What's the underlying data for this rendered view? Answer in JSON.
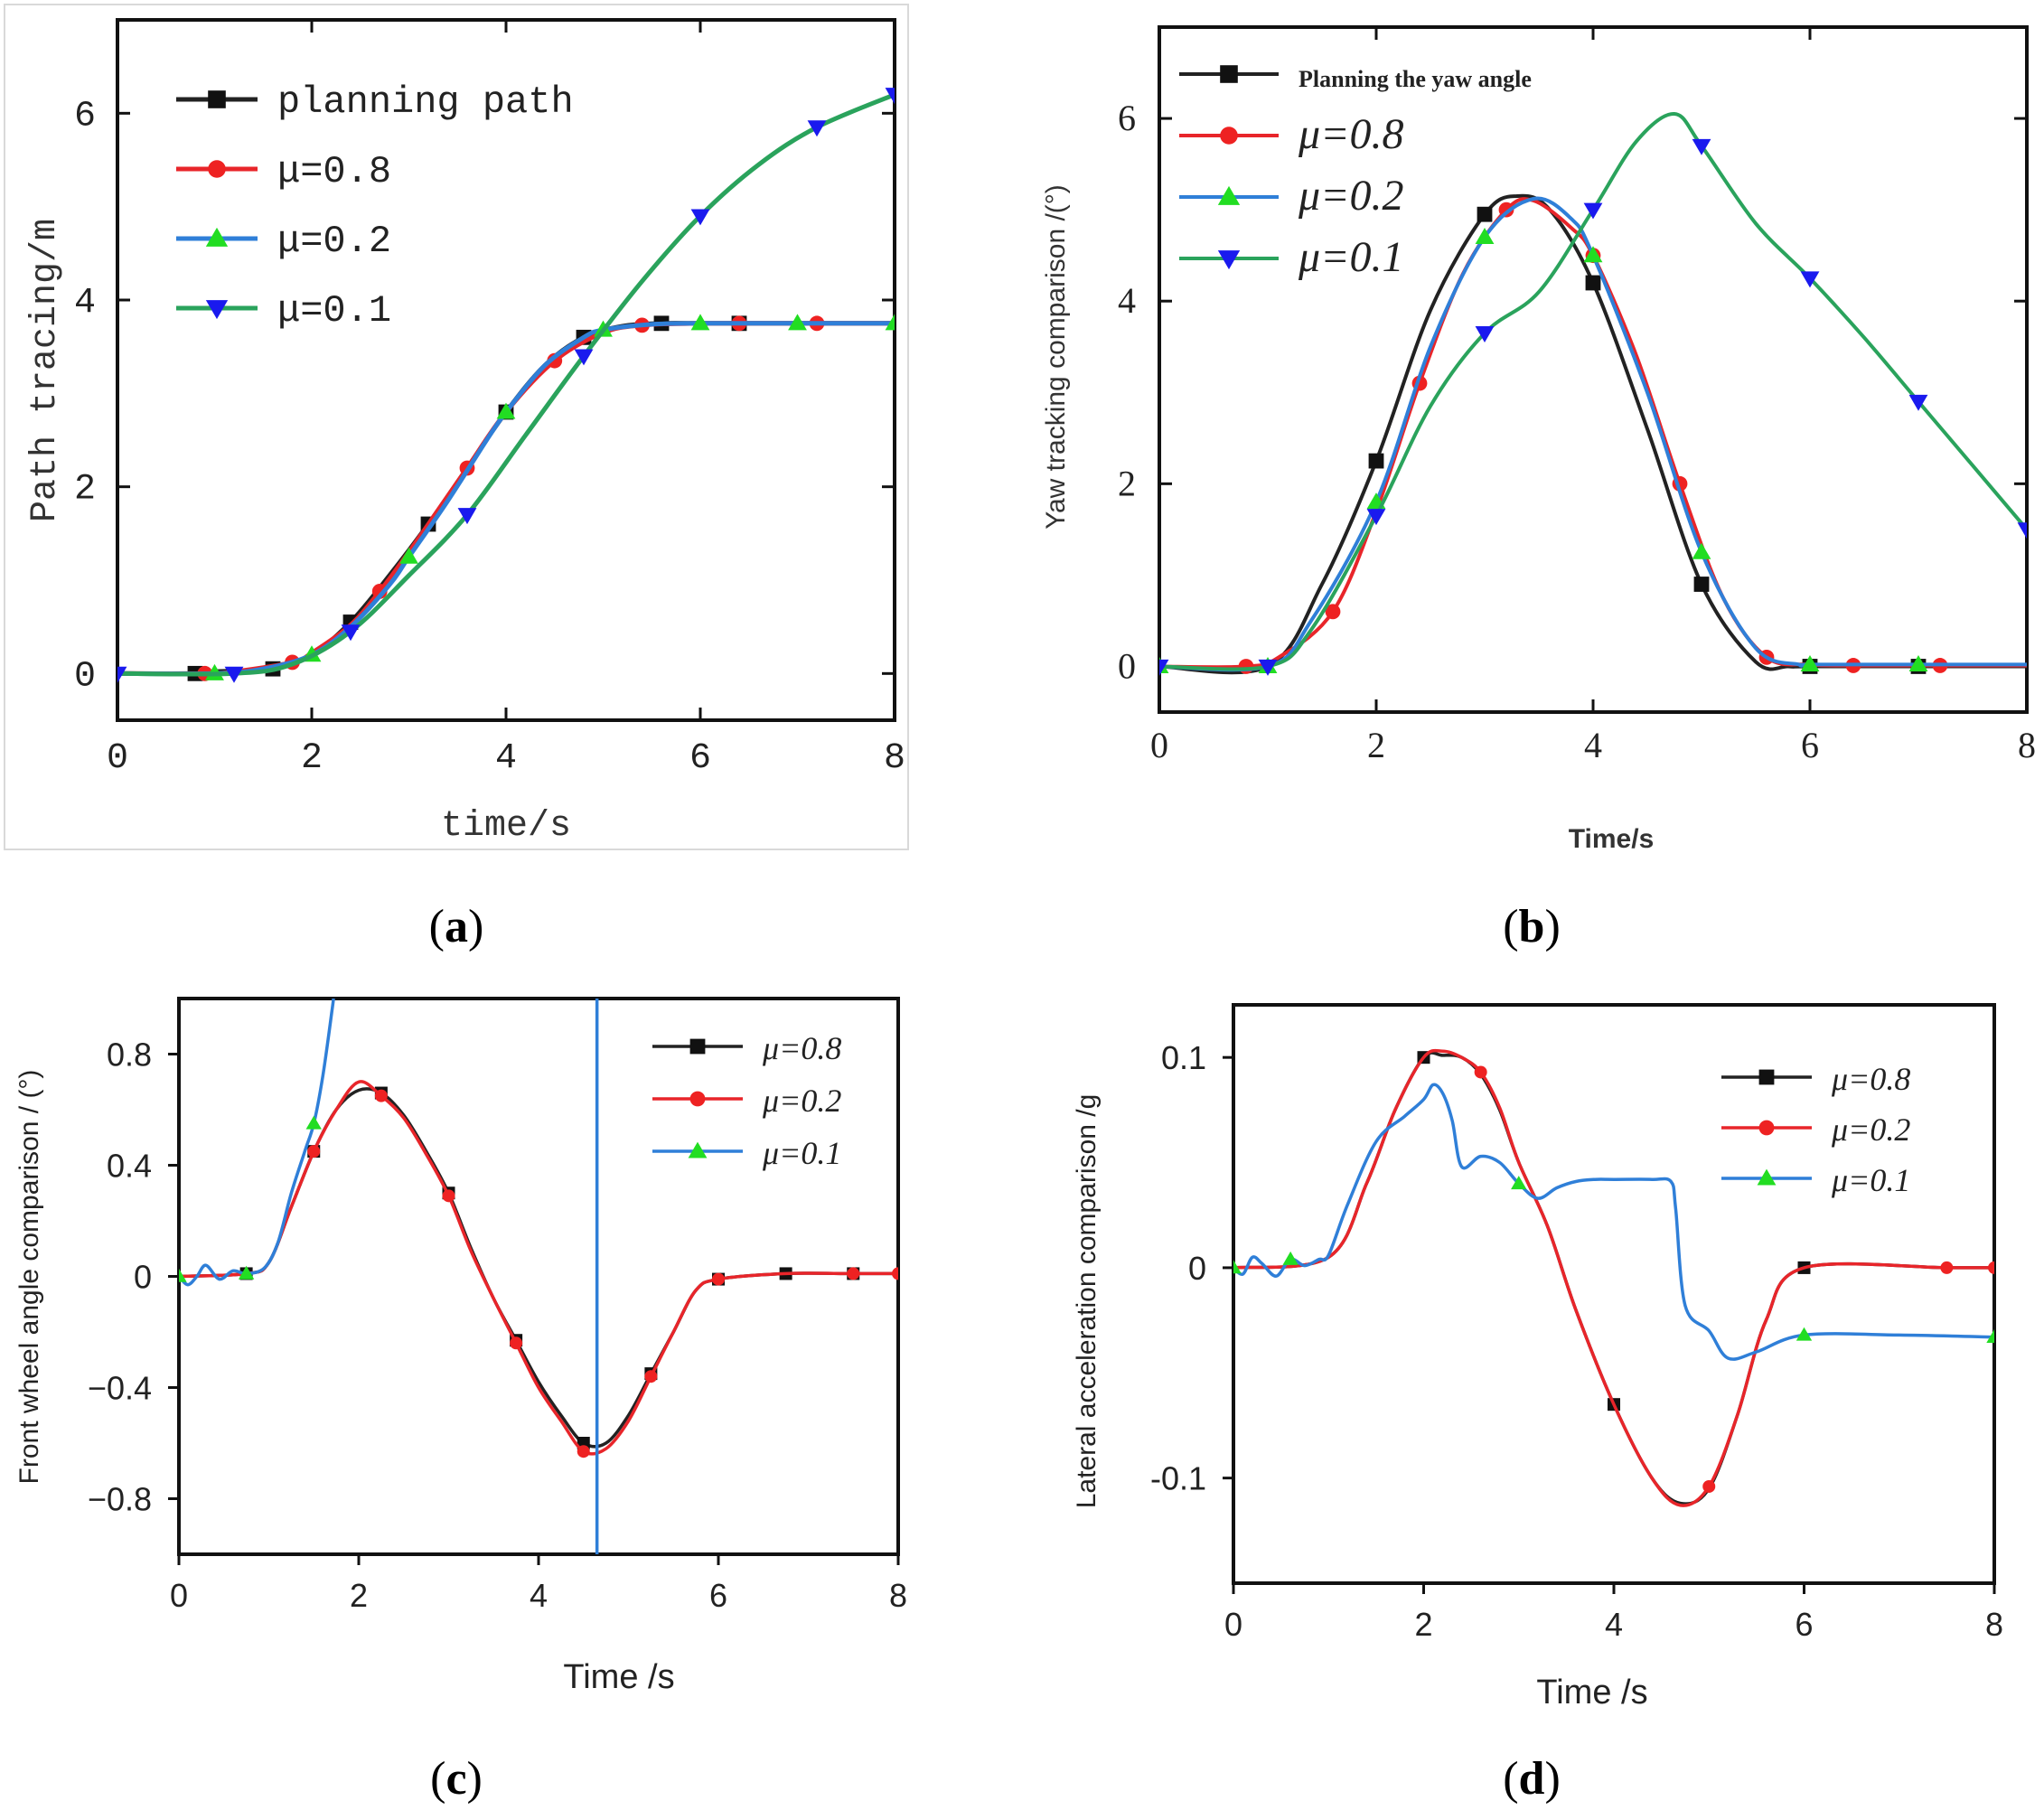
{
  "chart_data": [
    {
      "id": "a",
      "panel_label": "a",
      "type": "line",
      "xlabel": "time/s",
      "ylabel": "Path tracing/m",
      "xlim": [
        0,
        8
      ],
      "ylim": [
        -0.5,
        7
      ],
      "xticks": [
        0,
        2,
        4,
        6,
        8
      ],
      "yticks": [
        0,
        2,
        4,
        6
      ],
      "legend_position": "top-left",
      "series": [
        {
          "name": "planning path",
          "color": "#222222",
          "marker": "square",
          "x": [
            0,
            0.8,
            1.0,
            1.6,
            2.0,
            2.4,
            2.8,
            3.2,
            3.6,
            4.0,
            4.4,
            4.8,
            5.2,
            5.6,
            6.0,
            6.4,
            7.0,
            8.0
          ],
          "y": [
            0,
            0,
            0.02,
            0.05,
            0.2,
            0.55,
            1.05,
            1.6,
            2.2,
            2.8,
            3.3,
            3.6,
            3.72,
            3.75,
            3.75,
            3.75,
            3.75,
            3.75
          ],
          "marker_x": [
            0.8,
            1.6,
            2.4,
            3.2,
            4.0,
            4.8,
            5.6,
            6.4
          ]
        },
        {
          "name": "μ=0.8",
          "color": "#e8252a",
          "marker": "circle",
          "x": [
            0,
            0.9,
            1.2,
            1.8,
            2.0,
            2.4,
            2.7,
            3.0,
            3.3,
            3.6,
            4.0,
            4.5,
            5.0,
            5.4,
            6.0,
            7.2,
            8.0
          ],
          "y": [
            0,
            0,
            0.02,
            0.12,
            0.22,
            0.52,
            0.88,
            1.3,
            1.75,
            2.2,
            2.8,
            3.35,
            3.65,
            3.73,
            3.75,
            3.75,
            3.75
          ],
          "marker_x": [
            0.9,
            1.8,
            2.7,
            3.6,
            4.5,
            5.4,
            6.4,
            7.2
          ]
        },
        {
          "name": "μ=0.2",
          "color": "#2f7fd8",
          "marker": "triangle-up",
          "x": [
            0,
            1.0,
            1.5,
            2.0,
            2.4,
            2.8,
            3.0,
            3.4,
            3.8,
            4.0,
            4.4,
            4.8,
            5.0,
            5.5,
            6.0,
            7.0,
            8.0
          ],
          "y": [
            0,
            0,
            0.05,
            0.2,
            0.5,
            0.95,
            1.25,
            1.85,
            2.5,
            2.8,
            3.3,
            3.6,
            3.68,
            3.74,
            3.75,
            3.75,
            3.75
          ],
          "marker_x": [
            1.0,
            2.0,
            3.0,
            4.0,
            5.0,
            6.0,
            7.0,
            8.0
          ]
        },
        {
          "name": "μ=0.1",
          "color": "#2aa35c",
          "marker": "triangle-down",
          "x": [
            0,
            1.2,
            1.8,
            2.4,
            3.0,
            3.6,
            4.2,
            4.8,
            5.4,
            6.0,
            6.6,
            7.2,
            8.0
          ],
          "y": [
            0,
            0,
            0.1,
            0.45,
            1.05,
            1.7,
            2.55,
            3.4,
            4.2,
            4.9,
            5.45,
            5.85,
            6.2
          ],
          "marker_x": [
            0,
            1.2,
            2.4,
            3.6,
            4.8,
            6.0,
            7.2,
            8.0
          ]
        }
      ]
    },
    {
      "id": "b",
      "panel_label": "b",
      "type": "line",
      "xlabel": "Time/s",
      "ylabel": "Yaw tracking comparison /(°)",
      "xlim": [
        0,
        8
      ],
      "ylim": [
        -0.5,
        7
      ],
      "xticks": [
        0,
        2,
        4,
        6,
        8
      ],
      "yticks": [
        0,
        2,
        4,
        6
      ],
      "legend_position": "top-left",
      "series": [
        {
          "name": "Planning the yaw angle",
          "color": "#222222",
          "marker": "square",
          "x": [
            0,
            1.0,
            1.5,
            2.0,
            2.5,
            3.0,
            3.3,
            3.6,
            4.0,
            4.5,
            5.0,
            5.5,
            5.8,
            6.0,
            7.0,
            8.0
          ],
          "y": [
            0,
            0,
            0.9,
            2.25,
            3.9,
            4.95,
            5.15,
            5.0,
            4.2,
            2.6,
            0.9,
            0.05,
            0,
            0,
            0,
            0
          ],
          "marker_x": [
            2.0,
            3.0,
            4.0,
            5.0,
            6.0,
            7.0
          ]
        },
        {
          "name": "μ=0.8",
          "color": "#e8252a",
          "marker": "circle",
          "x": [
            0,
            0.8,
            1.1,
            1.6,
            2.0,
            2.4,
            2.8,
            3.2,
            3.45,
            3.8,
            4.0,
            4.4,
            4.8,
            5.2,
            5.6,
            6.0,
            6.4,
            7.2,
            8.0
          ],
          "y": [
            0,
            0,
            0.1,
            0.6,
            1.7,
            3.1,
            4.3,
            5.0,
            5.1,
            4.8,
            4.5,
            3.4,
            2.0,
            0.75,
            0.1,
            0.02,
            0.01,
            0.01,
            0.01
          ],
          "marker_x": [
            0.8,
            1.6,
            2.4,
            3.2,
            4.0,
            4.8,
            5.6,
            6.4,
            7.2
          ]
        },
        {
          "name": "μ=0.2",
          "color": "#2f7fd8",
          "marker": "triangle-up",
          "x": [
            0,
            1.0,
            1.4,
            2.0,
            2.5,
            3.0,
            3.45,
            3.8,
            4.0,
            4.5,
            5.0,
            5.5,
            5.9,
            6.0,
            7.0,
            8.0
          ],
          "y": [
            0,
            0,
            0.5,
            1.8,
            3.5,
            4.7,
            5.12,
            4.9,
            4.5,
            3.0,
            1.25,
            0.2,
            0.02,
            0.02,
            0.02,
            0.02
          ],
          "marker_x": [
            0,
            1.0,
            2.0,
            3.0,
            4.0,
            5.0,
            6.0,
            7.0
          ]
        },
        {
          "name": "μ=0.1",
          "color": "#2aa35c",
          "marker": "triangle-down",
          "x": [
            0,
            1.0,
            1.4,
            2.0,
            2.5,
            3.0,
            3.5,
            4.0,
            4.4,
            4.75,
            5.0,
            5.5,
            6.0,
            6.5,
            7.0,
            7.5,
            8.0
          ],
          "y": [
            0,
            0,
            0.4,
            1.65,
            2.85,
            3.65,
            4.1,
            5.0,
            5.75,
            6.05,
            5.7,
            4.85,
            4.25,
            3.6,
            2.9,
            2.2,
            1.5
          ],
          "marker_x": [
            0,
            1.0,
            2.0,
            3.0,
            4.0,
            5.0,
            6.0,
            7.0,
            8.0
          ]
        }
      ]
    },
    {
      "id": "c",
      "panel_label": "c",
      "type": "line",
      "xlabel": "Time /s",
      "ylabel": "Front wheel angle comparison / (°)",
      "xlim": [
        0,
        8
      ],
      "ylim": [
        -1,
        1
      ],
      "xticks": [
        0,
        2,
        4,
        6,
        8
      ],
      "yticks": [
        -0.8,
        -0.4,
        0,
        0.4,
        0.8
      ],
      "ytick_labels": [
        "−0.8",
        "−0.4",
        "0",
        "0.4",
        "0.8"
      ],
      "legend_position": "top-right",
      "series": [
        {
          "name": "μ=0.8",
          "color": "#222222",
          "marker": "square",
          "x": [
            0,
            0.75,
            1.0,
            1.25,
            1.5,
            1.75,
            2.0,
            2.25,
            2.5,
            2.75,
            3.0,
            3.25,
            3.5,
            3.75,
            4.0,
            4.25,
            4.5,
            4.75,
            5.0,
            5.25,
            5.5,
            5.75,
            6.0,
            6.75,
            7.5,
            8.0
          ],
          "y": [
            0,
            0.01,
            0.05,
            0.25,
            0.45,
            0.6,
            0.67,
            0.66,
            0.58,
            0.45,
            0.3,
            0.1,
            -0.08,
            -0.23,
            -0.38,
            -0.5,
            -0.6,
            -0.6,
            -0.5,
            -0.35,
            -0.2,
            -0.05,
            -0.01,
            0.01,
            0.01,
            0.01
          ],
          "marker_x": [
            0.75,
            1.5,
            2.25,
            3.0,
            3.75,
            4.5,
            5.25,
            6.0,
            6.75,
            7.5
          ]
        },
        {
          "name": "μ=0.2",
          "color": "#e8252a",
          "marker": "circle",
          "x": [
            0,
            0.75,
            1.0,
            1.25,
            1.5,
            1.75,
            2.0,
            2.25,
            2.5,
            2.75,
            3.0,
            3.25,
            3.5,
            3.75,
            4.0,
            4.25,
            4.5,
            4.75,
            5.0,
            5.25,
            5.5,
            5.75,
            6.0,
            6.75,
            7.5,
            8.0
          ],
          "y": [
            0,
            0.01,
            0.05,
            0.25,
            0.45,
            0.6,
            0.7,
            0.65,
            0.57,
            0.44,
            0.29,
            0.09,
            -0.08,
            -0.24,
            -0.4,
            -0.52,
            -0.63,
            -0.62,
            -0.52,
            -0.36,
            -0.2,
            -0.05,
            -0.01,
            0.01,
            0.01,
            0.01
          ],
          "marker_x": [
            1.5,
            2.25,
            3.0,
            3.75,
            4.5,
            5.25,
            6.0,
            7.5,
            8.0
          ]
        },
        {
          "name": "μ=0.1",
          "color": "#2f7fd8",
          "marker": "triangle-up",
          "x": [
            0,
            0.1,
            0.2,
            0.3,
            0.45,
            0.6,
            0.75,
            0.95,
            1.1,
            1.25,
            1.4,
            1.5,
            1.6,
            1.7,
            1.72
          ],
          "y": [
            0,
            -0.03,
            0.0,
            0.04,
            -0.01,
            0.02,
            0.01,
            0.03,
            0.12,
            0.3,
            0.45,
            0.55,
            0.72,
            0.95,
            1.0
          ],
          "marker_x": [
            0,
            0.75,
            1.5
          ],
          "spike_x": 4.65
        }
      ]
    },
    {
      "id": "d",
      "panel_label": "d",
      "type": "line",
      "xlabel": "Time /s",
      "ylabel": "Lateral acceleration comparison /g",
      "xlim": [
        0,
        8
      ],
      "ylim": [
        -0.15,
        0.125
      ],
      "xticks": [
        0,
        2,
        4,
        6,
        8
      ],
      "yticks": [
        -0.1,
        0,
        0.1
      ],
      "ytick_labels": [
        "-0.1",
        "0",
        "0.1"
      ],
      "legend_position": "top-right",
      "series": [
        {
          "name": "μ=0.8",
          "color": "#222222",
          "marker": "square",
          "x": [
            0,
            1.0,
            1.4,
            1.7,
            2.0,
            2.2,
            2.4,
            2.6,
            2.8,
            3.0,
            3.3,
            3.6,
            4.0,
            4.4,
            4.7,
            5.0,
            5.3,
            5.6,
            6.0,
            7.5,
            8.0
          ],
          "y": [
            0,
            0.005,
            0.04,
            0.075,
            0.1,
            0.101,
            0.1,
            0.092,
            0.075,
            0.05,
            0.02,
            -0.02,
            -0.065,
            -0.1,
            -0.112,
            -0.105,
            -0.07,
            -0.025,
            0,
            0,
            0
          ],
          "marker_x": [
            2.0,
            4.0,
            6.0
          ]
        },
        {
          "name": "μ=0.2",
          "color": "#e8252a",
          "marker": "circle",
          "x": [
            0,
            1.0,
            1.4,
            1.7,
            2.0,
            2.2,
            2.4,
            2.6,
            2.8,
            3.0,
            3.3,
            3.6,
            4.0,
            4.4,
            4.7,
            5.0,
            5.3,
            5.6,
            6.0,
            7.5,
            8.0
          ],
          "y": [
            0,
            0.005,
            0.04,
            0.075,
            0.1,
            0.103,
            0.1,
            0.093,
            0.076,
            0.05,
            0.02,
            -0.02,
            -0.065,
            -0.1,
            -0.113,
            -0.104,
            -0.07,
            -0.025,
            0,
            0,
            0
          ],
          "marker_x": [
            2.6,
            5.0,
            7.5,
            8.0
          ]
        },
        {
          "name": "μ=0.1",
          "color": "#2f7fd8",
          "marker": "triangle-up",
          "x": [
            0,
            0.1,
            0.2,
            0.3,
            0.45,
            0.6,
            0.75,
            0.9,
            1.0,
            1.2,
            1.5,
            1.8,
            2.0,
            2.1,
            2.2,
            2.3,
            2.4,
            2.6,
            2.8,
            3.0,
            3.2,
            3.4,
            3.6,
            3.8,
            4.0,
            4.4,
            4.6,
            4.65,
            4.75,
            5.0,
            5.2,
            5.5,
            6.0,
            7.0,
            8.0
          ],
          "y": [
            0,
            -0.003,
            0.005,
            0.002,
            -0.004,
            0.004,
            0.001,
            0.004,
            0.006,
            0.03,
            0.06,
            0.072,
            0.08,
            0.087,
            0.083,
            0.07,
            0.048,
            0.053,
            0.05,
            0.04,
            0.033,
            0.038,
            0.041,
            0.042,
            0.042,
            0.042,
            0.041,
            0.028,
            -0.018,
            -0.03,
            -0.043,
            -0.04,
            -0.032,
            -0.032,
            -0.033
          ],
          "marker_x": [
            0,
            0.6,
            3.0,
            6.0,
            8.0
          ]
        }
      ]
    }
  ]
}
